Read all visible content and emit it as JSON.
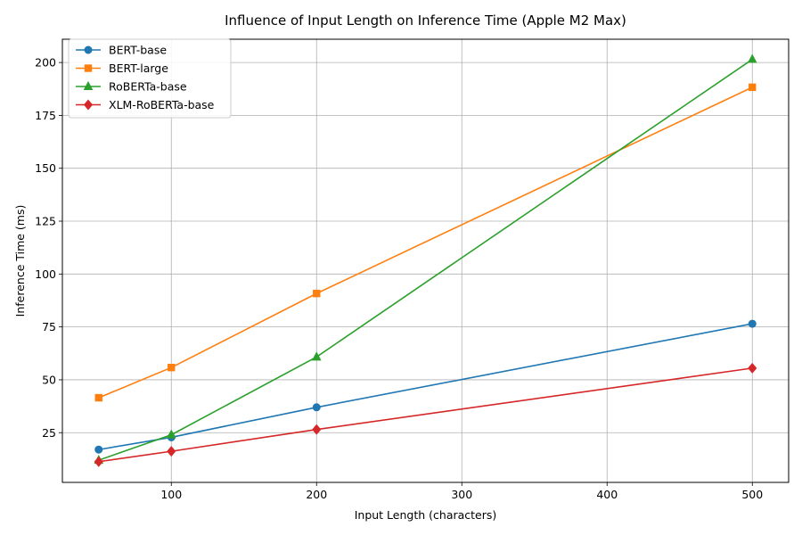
{
  "chart_data": {
    "type": "line",
    "title": "Influence of Input Length on Inference Time (Apple M2 Max)",
    "xlabel": "Input Length (characters)",
    "ylabel": "Inference Time (ms)",
    "x": [
      50,
      100,
      200,
      500
    ],
    "xlim": [
      25,
      525
    ],
    "ylim": [
      1.5,
      211
    ],
    "xticks": [
      100,
      200,
      300,
      400,
      500
    ],
    "yticks": [
      25,
      50,
      75,
      100,
      125,
      150,
      175,
      200
    ],
    "grid": true,
    "legend_position": "top-left",
    "series": [
      {
        "name": "BERT-base",
        "color": "#1f77b4",
        "marker": "circle",
        "values": [
          17.0,
          22.8,
          37.0,
          76.5
        ]
      },
      {
        "name": "BERT-large",
        "color": "#ff7f0e",
        "marker": "square",
        "values": [
          41.5,
          55.8,
          90.8,
          188.3
        ]
      },
      {
        "name": "RoBERTa-base",
        "color": "#2ca02c",
        "marker": "triangle",
        "values": [
          12.0,
          24.0,
          60.8,
          201.5
        ]
      },
      {
        "name": "XLM-RoBERTa-base",
        "color": "#d62728",
        "marker": "diamond",
        "values": [
          11.3,
          16.2,
          26.5,
          55.5
        ]
      }
    ]
  }
}
